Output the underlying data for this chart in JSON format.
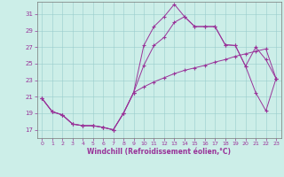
{
  "xlabel": "Windchill (Refroidissement éolien,°C)",
  "bg_color": "#cceee8",
  "grid_color": "#99cccc",
  "line_color": "#993399",
  "x_ticks": [
    0,
    1,
    2,
    3,
    4,
    5,
    6,
    7,
    8,
    9,
    10,
    11,
    12,
    13,
    14,
    15,
    16,
    17,
    18,
    19,
    20,
    21,
    22,
    23
  ],
  "y_ticks": [
    17,
    19,
    21,
    23,
    25,
    27,
    29,
    31
  ],
  "xlim": [
    -0.5,
    23.5
  ],
  "ylim": [
    16.0,
    32.5
  ],
  "line1_x": [
    0,
    1,
    2,
    3,
    4,
    5,
    6,
    7,
    8,
    9,
    10,
    11,
    12,
    13,
    14,
    15,
    16,
    17,
    18,
    19,
    20,
    21,
    22,
    23
  ],
  "line1_y": [
    20.8,
    19.2,
    18.8,
    17.7,
    17.5,
    17.5,
    17.3,
    17.0,
    19.0,
    21.5,
    22.2,
    22.8,
    23.3,
    23.8,
    24.2,
    24.5,
    24.8,
    25.2,
    25.5,
    25.9,
    26.2,
    26.5,
    26.8,
    23.2
  ],
  "line2_x": [
    0,
    1,
    2,
    3,
    4,
    5,
    6,
    7,
    8,
    9,
    10,
    11,
    12,
    13,
    14,
    15,
    16,
    17,
    18,
    19,
    20,
    21,
    22,
    23
  ],
  "line2_y": [
    20.8,
    19.2,
    18.8,
    17.7,
    17.5,
    17.5,
    17.3,
    17.0,
    19.0,
    21.5,
    27.2,
    29.5,
    30.7,
    32.2,
    30.7,
    29.5,
    29.5,
    29.5,
    27.3,
    27.2,
    24.7,
    27.0,
    25.5,
    23.2
  ],
  "line3_x": [
    0,
    1,
    2,
    3,
    4,
    5,
    6,
    7,
    8,
    9,
    10,
    11,
    12,
    13,
    14,
    15,
    16,
    17,
    18,
    19,
    20,
    21,
    22,
    23
  ],
  "line3_y": [
    20.8,
    19.2,
    18.8,
    17.7,
    17.5,
    17.5,
    17.3,
    17.0,
    19.0,
    21.5,
    24.8,
    27.2,
    28.2,
    30.0,
    30.7,
    29.5,
    29.5,
    29.5,
    27.3,
    27.2,
    24.7,
    21.5,
    19.3,
    23.2
  ],
  "xtick_fontsize": 4.5,
  "ytick_fontsize": 5.0,
  "xlabel_fontsize": 5.5,
  "linewidth": 0.7,
  "markersize": 2.5
}
